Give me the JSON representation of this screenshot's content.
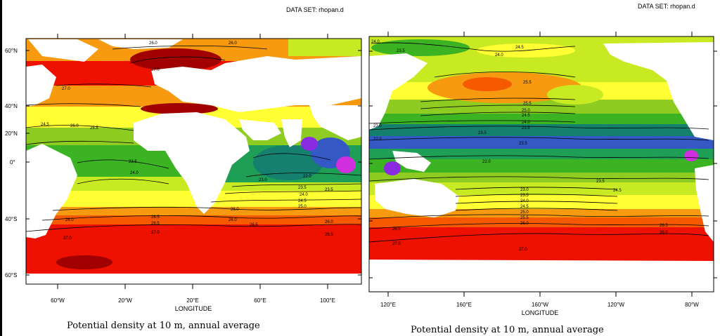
{
  "maps": [
    {
      "dataset_label": "DATA SET: rhopan.d",
      "caption": "Potential density at 10 m, annual average",
      "xlabel": "LONGITUDE",
      "lat_ticks": [
        "60°N",
        "40°N",
        "20°N",
        "0°",
        "40°S",
        "60°S"
      ],
      "lon_ticks": [
        "60°W",
        "20°W",
        "20°E",
        "60°E",
        "100°E"
      ],
      "contour_labels": [
        "26.0",
        "26.0",
        "27.0",
        "27.0",
        "24.5",
        "26.0",
        "25.5",
        "23.5",
        "24.0",
        "22.0",
        "23.0",
        "23.5",
        "23.5",
        "24.0",
        "24.5",
        "25.0",
        "26.0",
        "26.5",
        "26.0",
        "26.0",
        "26.5",
        "26.5",
        "26.0",
        "27.0",
        "27.0",
        "26.5"
      ]
    },
    {
      "dataset_label": "DATA SET: rhopan.d",
      "caption": "Potential density at 10 m, annual average",
      "xlabel": "LONGITUDE",
      "lat_ticks": [],
      "lon_ticks": [
        "120°E",
        "160°E",
        "160°W",
        "120°W",
        "80°W"
      ],
      "contour_labels": [
        "24.0",
        "23.5",
        "24.5",
        "24.0",
        "25.5",
        "25.5",
        "25.0",
        "24.5",
        "24.0",
        "23.5",
        "23.0",
        "22.0",
        "23.5",
        "22.0",
        "23.5",
        "23.5",
        "24.5",
        "23.0",
        "23.5",
        "24.0",
        "24.5",
        "25.0",
        "25.5",
        "26.0",
        "26.5",
        "26.0",
        "26.5",
        "27.0",
        "27.0"
      ]
    }
  ],
  "colors": {
    "deep_red": "#a10000",
    "red": "#ee1100",
    "red_orange": "#f55a00",
    "orange": "#f79a10",
    "yellow_orange": "#f7d21f",
    "yellow": "#ffff33",
    "yellow_green": "#c8ea22",
    "light_green": "#8fcc22",
    "green": "#3cb322",
    "teal_green": "#1f9f55",
    "dark_teal": "#15806e",
    "blue": "#3459c4",
    "violet": "#8a2be2",
    "magenta": "#d12ee0",
    "land": "#ffffff"
  }
}
